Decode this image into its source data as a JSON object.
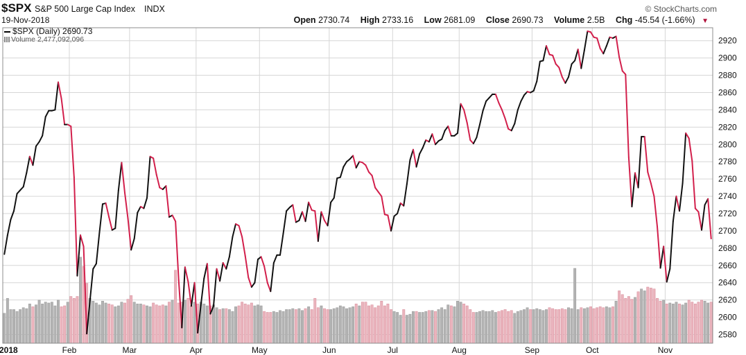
{
  "header": {
    "symbol": "$SPX",
    "name": "S&P 500 Large Cap Index",
    "type": "INDX",
    "date": "19-Nov-2018",
    "credit": "© StockCharts.com",
    "quote": {
      "open_label": "Open",
      "open": "2730.74",
      "high_label": "High",
      "high": "2733.16",
      "low_label": "Low",
      "low": "2681.09",
      "close_label": "Close",
      "close": "2690.73",
      "volume_label": "Volume",
      "volume": "2.5B",
      "chg_label": "Chg",
      "chg": "-45.54 (-1.66%)"
    }
  },
  "legend": {
    "price": "$SPX (Daily) 2690.73",
    "volume": "Volume 2,477,092,096"
  },
  "colors": {
    "up": "#111111",
    "down": "#d21f4b",
    "vol_up": "#b3b3b3",
    "vol_down": "#eab4bd",
    "grid": "#d6d6d6"
  },
  "chart_data": {
    "type": "line",
    "ylim": [
      2570,
      2935
    ],
    "yticks": [
      2580,
      2600,
      2620,
      2640,
      2660,
      2680,
      2700,
      2720,
      2740,
      2760,
      2780,
      2800,
      2820,
      2840,
      2860,
      2880,
      2900,
      2920
    ],
    "xticks": [
      {
        "label": "2018",
        "day": 0
      },
      {
        "label": "Feb",
        "day": 21
      },
      {
        "label": "Mar",
        "day": 40
      },
      {
        "label": "Apr",
        "day": 61
      },
      {
        "label": "May",
        "day": 81
      },
      {
        "label": "Jun",
        "day": 103
      },
      {
        "label": "Jul",
        "day": 123
      },
      {
        "label": "Aug",
        "day": 144
      },
      {
        "label": "Sep",
        "day": 167
      },
      {
        "label": "Oct",
        "day": 186
      },
      {
        "label": "Nov",
        "day": 209
      }
    ],
    "price_anchors": [
      [
        0,
        2673
      ],
      [
        1,
        2695
      ],
      [
        2,
        2713
      ],
      [
        3,
        2723
      ],
      [
        4,
        2743
      ],
      [
        5,
        2747
      ],
      [
        6,
        2751
      ],
      [
        7,
        2767
      ],
      [
        8,
        2786
      ],
      [
        9,
        2776
      ],
      [
        10,
        2798
      ],
      [
        11,
        2803
      ],
      [
        12,
        2810
      ],
      [
        13,
        2832
      ],
      [
        14,
        2839
      ],
      [
        15,
        2839
      ],
      [
        16,
        2840
      ],
      [
        17,
        2872
      ],
      [
        18,
        2853
      ],
      [
        19,
        2823
      ],
      [
        20,
        2823
      ],
      [
        21,
        2821
      ],
      [
        22,
        2762
      ],
      [
        23,
        2648
      ],
      [
        24,
        2695
      ],
      [
        25,
        2682
      ],
      [
        26,
        2581
      ],
      [
        27,
        2619
      ],
      [
        28,
        2656
      ],
      [
        29,
        2662
      ],
      [
        30,
        2698
      ],
      [
        31,
        2731
      ],
      [
        32,
        2732
      ],
      [
        33,
        2716
      ],
      [
        34,
        2701
      ],
      [
        35,
        2703
      ],
      [
        36,
        2747
      ],
      [
        37,
        2779
      ],
      [
        38,
        2744
      ],
      [
        39,
        2714
      ],
      [
        40,
        2678
      ],
      [
        41,
        2691
      ],
      [
        42,
        2721
      ],
      [
        43,
        2728
      ],
      [
        44,
        2726
      ],
      [
        45,
        2738
      ],
      [
        46,
        2786
      ],
      [
        47,
        2784
      ],
      [
        48,
        2765
      ],
      [
        49,
        2750
      ],
      [
        50,
        2748
      ],
      [
        51,
        2752
      ],
      [
        52,
        2716
      ],
      [
        53,
        2718
      ],
      [
        54,
        2711
      ],
      [
        55,
        2643
      ],
      [
        56,
        2588
      ],
      [
        57,
        2658
      ],
      [
        58,
        2641
      ],
      [
        59,
        2613
      ],
      [
        60,
        2640
      ],
      [
        61,
        2582
      ],
      [
        62,
        2614
      ],
      [
        63,
        2645
      ],
      [
        64,
        2662
      ],
      [
        65,
        2604
      ],
      [
        66,
        2613
      ],
      [
        67,
        2656
      ],
      [
        68,
        2642
      ],
      [
        69,
        2663
      ],
      [
        70,
        2656
      ],
      [
        71,
        2670
      ],
      [
        72,
        2693
      ],
      [
        73,
        2708
      ],
      [
        74,
        2706
      ],
      [
        75,
        2693
      ],
      [
        76,
        2671
      ],
      [
        77,
        2646
      ],
      [
        78,
        2635
      ],
      [
        79,
        2640
      ],
      [
        80,
        2667
      ],
      [
        81,
        2670
      ],
      [
        82,
        2659
      ],
      [
        83,
        2640
      ],
      [
        84,
        2630
      ],
      [
        85,
        2663
      ],
      [
        86,
        2672
      ],
      [
        87,
        2672
      ],
      [
        88,
        2697
      ],
      [
        89,
        2723
      ],
      [
        90,
        2727
      ],
      [
        91,
        2730
      ],
      [
        92,
        2710
      ],
      [
        93,
        2712
      ],
      [
        94,
        2722
      ],
      [
        95,
        2711
      ],
      [
        96,
        2733
      ],
      [
        97,
        2724
      ],
      [
        98,
        2723
      ],
      [
        99,
        2688
      ],
      [
        100,
        2722
      ],
      [
        101,
        2712
      ],
      [
        102,
        2706
      ],
      [
        103,
        2733
      ],
      [
        104,
        2738
      ],
      [
        105,
        2761
      ],
      [
        106,
        2762
      ],
      [
        107,
        2774
      ],
      [
        108,
        2780
      ],
      [
        109,
        2783
      ],
      [
        110,
        2787
      ],
      [
        111,
        2773
      ],
      [
        112,
        2780
      ],
      [
        113,
        2779
      ],
      [
        114,
        2776
      ],
      [
        115,
        2768
      ],
      [
        116,
        2764
      ],
      [
        117,
        2750
      ],
      [
        118,
        2745
      ],
      [
        119,
        2740
      ],
      [
        120,
        2719
      ],
      [
        121,
        2718
      ],
      [
        122,
        2700
      ],
      [
        123,
        2717
      ],
      [
        124,
        2720
      ],
      [
        125,
        2732
      ],
      [
        126,
        2729
      ],
      [
        127,
        2754
      ],
      [
        128,
        2782
      ],
      [
        129,
        2794
      ],
      [
        130,
        2774
      ],
      [
        131,
        2789
      ],
      [
        132,
        2796
      ],
      [
        133,
        2805
      ],
      [
        134,
        2803
      ],
      [
        135,
        2812
      ],
      [
        136,
        2800
      ],
      [
        137,
        2804
      ],
      [
        138,
        2806
      ],
      [
        139,
        2816
      ],
      [
        140,
        2821
      ],
      [
        141,
        2810
      ],
      [
        142,
        2810
      ],
      [
        143,
        2813
      ],
      [
        144,
        2847
      ],
      [
        145,
        2840
      ],
      [
        146,
        2825
      ],
      [
        147,
        2805
      ],
      [
        148,
        2801
      ],
      [
        149,
        2808
      ],
      [
        150,
        2823
      ],
      [
        151,
        2839
      ],
      [
        152,
        2850
      ],
      [
        153,
        2854
      ],
      [
        154,
        2858
      ],
      [
        155,
        2858
      ],
      [
        156,
        2848
      ],
      [
        157,
        2840
      ],
      [
        158,
        2830
      ],
      [
        159,
        2818
      ],
      [
        160,
        2816
      ],
      [
        161,
        2824
      ],
      [
        162,
        2840
      ],
      [
        163,
        2850
      ],
      [
        164,
        2857
      ],
      [
        165,
        2861
      ],
      [
        166,
        2860
      ],
      [
        167,
        2862
      ],
      [
        168,
        2873
      ],
      [
        169,
        2896
      ],
      [
        170,
        2897
      ],
      [
        171,
        2914
      ],
      [
        172,
        2904
      ],
      [
        173,
        2903
      ],
      [
        174,
        2893
      ],
      [
        175,
        2889
      ],
      [
        176,
        2878
      ],
      [
        177,
        2871
      ],
      [
        178,
        2878
      ],
      [
        179,
        2893
      ],
      [
        180,
        2897
      ],
      [
        181,
        2910
      ],
      [
        182,
        2888
      ],
      [
        183,
        2909
      ],
      [
        184,
        2931
      ],
      [
        185,
        2930
      ],
      [
        186,
        2924
      ],
      [
        187,
        2923
      ],
      [
        188,
        2911
      ],
      [
        189,
        2905
      ],
      [
        190,
        2914
      ],
      [
        191,
        2924
      ],
      [
        192,
        2923
      ],
      [
        193,
        2925
      ],
      [
        194,
        2901
      ],
      [
        195,
        2885
      ],
      [
        196,
        2881
      ],
      [
        197,
        2785
      ],
      [
        198,
        2728
      ],
      [
        199,
        2767
      ],
      [
        200,
        2750
      ],
      [
        201,
        2809
      ],
      [
        202,
        2809
      ],
      [
        203,
        2768
      ],
      [
        204,
        2755
      ],
      [
        205,
        2740
      ],
      [
        206,
        2705
      ],
      [
        207,
        2657
      ],
      [
        208,
        2682
      ],
      [
        209,
        2641
      ],
      [
        210,
        2656
      ],
      [
        211,
        2711
      ],
      [
        212,
        2740
      ],
      [
        213,
        2723
      ],
      [
        214,
        2755
      ],
      [
        215,
        2813
      ],
      [
        216,
        2807
      ],
      [
        217,
        2781
      ],
      [
        218,
        2726
      ],
      [
        219,
        2722
      ],
      [
        220,
        2701
      ],
      [
        221,
        2730
      ],
      [
        222,
        2737
      ],
      [
        223,
        2691
      ]
    ],
    "volume_level": [
      0.32,
      0.48,
      0.36,
      0.36,
      0.34,
      0.36,
      0.38,
      0.37,
      0.42,
      0.39,
      0.41,
      0.46,
      0.42,
      0.44,
      0.43,
      0.44,
      0.4,
      0.46,
      0.39,
      0.4,
      0.44,
      0.5,
      0.48,
      0.5,
      0.92,
      0.82,
      0.64,
      0.48,
      0.45,
      0.43,
      0.41,
      0.45,
      0.43,
      0.42,
      0.41,
      0.39,
      0.4,
      0.44,
      0.43,
      0.47,
      0.51,
      0.44,
      0.42,
      0.42,
      0.41,
      0.4,
      0.39,
      0.43,
      0.41,
      0.4,
      0.41,
      0.4,
      0.44,
      0.46,
      0.78,
      0.43,
      0.44,
      0.46,
      0.48,
      0.4,
      0.44,
      0.42,
      0.44,
      0.42,
      0.4,
      0.4,
      0.41,
      0.38,
      0.36,
      0.37,
      0.37,
      0.36,
      0.34,
      0.39,
      0.4,
      0.44,
      0.42,
      0.41,
      0.43,
      0.4,
      0.41,
      0.4,
      0.34,
      0.33,
      0.33,
      0.34,
      0.33,
      0.35,
      0.34,
      0.36,
      0.36,
      0.37,
      0.36,
      0.37,
      0.35,
      0.37,
      0.39,
      0.36,
      0.48,
      0.38,
      0.4,
      0.37,
      0.36,
      0.36,
      0.37,
      0.38,
      0.4,
      0.39,
      0.37,
      0.38,
      0.39,
      0.42,
      0.4,
      0.44,
      0.44,
      0.4,
      0.41,
      0.38,
      0.4,
      0.45,
      0.4,
      0.42,
      0.36,
      0.34,
      0.33,
      0.3,
      0.36,
      0.3,
      0.31,
      0.34,
      0.34,
      0.33,
      0.33,
      0.34,
      0.35,
      0.35,
      0.34,
      0.36,
      0.38,
      0.36,
      0.41,
      0.4,
      0.39,
      0.45,
      0.44,
      0.42,
      0.4,
      0.36,
      0.33,
      0.33,
      0.34,
      0.35,
      0.34,
      0.34,
      0.35,
      0.33,
      0.34,
      0.35,
      0.36,
      0.34,
      0.35,
      0.32,
      0.34,
      0.35,
      0.36,
      0.38,
      0.36,
      0.36,
      0.37,
      0.36,
      0.35,
      0.36,
      0.38,
      0.37,
      0.36,
      0.36,
      0.37,
      0.36,
      0.38,
      0.37,
      0.8,
      0.36,
      0.38,
      0.37,
      0.38,
      0.39,
      0.37,
      0.38,
      0.39,
      0.38,
      0.39,
      0.38,
      0.39,
      0.45,
      0.56,
      0.52,
      0.48,
      0.5,
      0.47,
      0.49,
      0.55,
      0.58,
      0.56,
      0.6,
      0.59,
      0.58,
      0.48,
      0.45,
      0.46,
      0.42,
      0.43,
      0.42,
      0.44,
      0.42,
      0.41,
      0.43,
      0.46,
      0.44,
      0.42,
      0.44,
      0.46,
      0.45,
      0.43,
      0.44
    ]
  }
}
